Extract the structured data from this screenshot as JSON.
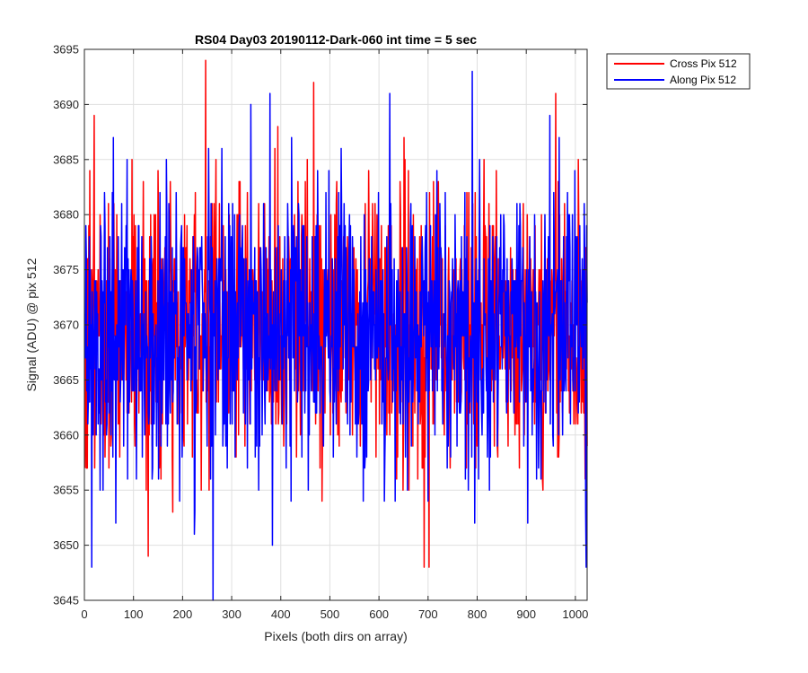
{
  "chart_data": {
    "type": "line",
    "title": "RS04 Day03 20190112-Dark-060 int time = 5 sec",
    "xlabel": "Pixels (both dirs on array)",
    "ylabel": "Signal (ADU) @ pix 512",
    "xlim": [
      0,
      1024
    ],
    "ylim": [
      3645,
      3695
    ],
    "xticks": [
      0,
      100,
      200,
      300,
      400,
      500,
      600,
      700,
      800,
      900,
      1000
    ],
    "yticks": [
      3645,
      3650,
      3655,
      3660,
      3665,
      3670,
      3675,
      3680,
      3685,
      3690,
      3695
    ],
    "grid": true,
    "legend_position": "outside-top-right",
    "series": [
      {
        "name": "Cross Pix 512",
        "color": "#ff0000",
        "x_start": 1,
        "x_step": 1,
        "count": 1024,
        "mean": 3669.5,
        "stdev": 6.5,
        "min": 3648,
        "max": 3694,
        "notable_points": [
          {
            "x": 247,
            "y": 3694
          },
          {
            "x": 467,
            "y": 3692
          },
          {
            "x": 20,
            "y": 3689
          },
          {
            "x": 130,
            "y": 3649
          },
          {
            "x": 692,
            "y": 3648
          },
          {
            "x": 702,
            "y": 3648
          }
        ]
      },
      {
        "name": "Along Pix 512",
        "color": "#0000ff",
        "x_start": 1,
        "x_step": 1,
        "count": 1024,
        "mean": 3669.5,
        "stdev": 6.5,
        "min": 3645,
        "max": 3693,
        "notable_points": [
          {
            "x": 262,
            "y": 3645
          },
          {
            "x": 790,
            "y": 3693
          },
          {
            "x": 378,
            "y": 3691
          },
          {
            "x": 622,
            "y": 3691
          },
          {
            "x": 15,
            "y": 3648
          },
          {
            "x": 1022,
            "y": 3648
          }
        ]
      }
    ]
  }
}
